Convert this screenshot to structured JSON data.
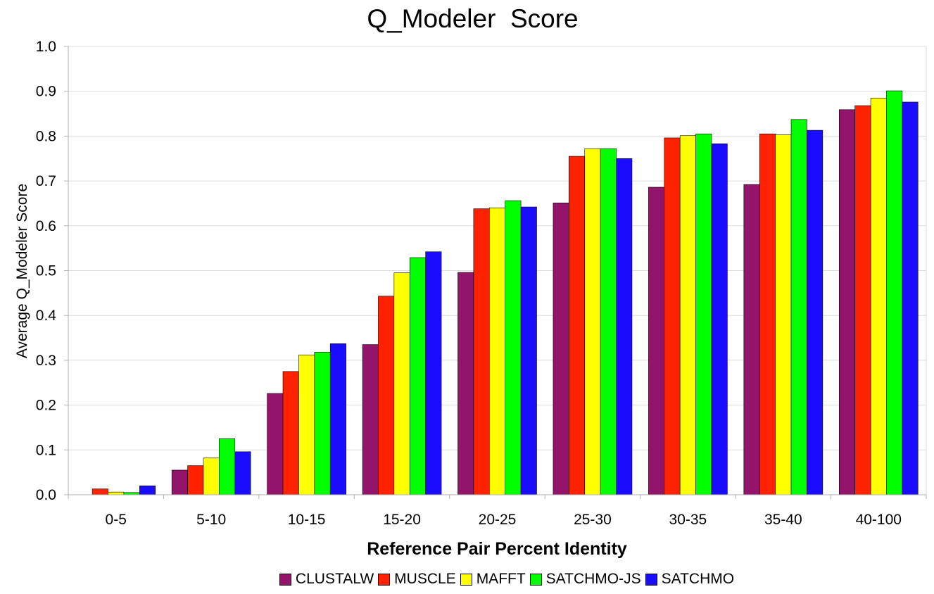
{
  "chart_data": {
    "type": "bar",
    "title": "Q_Modeler  Score",
    "xlabel": "Reference Pair Percent Identity",
    "ylabel": "Average Q_Modeler Score",
    "ylim": [
      0,
      1.0
    ],
    "yticks": [
      "0.0",
      "0.1",
      "0.2",
      "0.3",
      "0.4",
      "0.5",
      "0.6",
      "0.7",
      "0.8",
      "0.9",
      "1.0"
    ],
    "grid": true,
    "legend_position": "bottom",
    "categories": [
      "0-5",
      "5-10",
      "10-15",
      "15-20",
      "20-25",
      "25-30",
      "30-35",
      "35-40",
      "40-100"
    ],
    "series": [
      {
        "name": "CLUSTALW",
        "color": "#93156b",
        "values": [
          0.0,
          0.055,
          0.226,
          0.335,
          0.496,
          0.651,
          0.686,
          0.692,
          0.859
        ]
      },
      {
        "name": "MUSCLE",
        "color": "#ff2200",
        "values": [
          0.013,
          0.065,
          0.275,
          0.443,
          0.638,
          0.755,
          0.796,
          0.805,
          0.868
        ]
      },
      {
        "name": "MAFFT",
        "color": "#ffff00",
        "values": [
          0.006,
          0.082,
          0.312,
          0.495,
          0.64,
          0.772,
          0.801,
          0.803,
          0.885
        ]
      },
      {
        "name": "SATCHMO-JS",
        "color": "#00ff00",
        "values": [
          0.005,
          0.125,
          0.318,
          0.529,
          0.656,
          0.772,
          0.805,
          0.837,
          0.901
        ]
      },
      {
        "name": "SATCHMO",
        "color": "#1a0dff",
        "values": [
          0.02,
          0.096,
          0.337,
          0.542,
          0.642,
          0.75,
          0.783,
          0.813,
          0.876
        ]
      }
    ]
  }
}
